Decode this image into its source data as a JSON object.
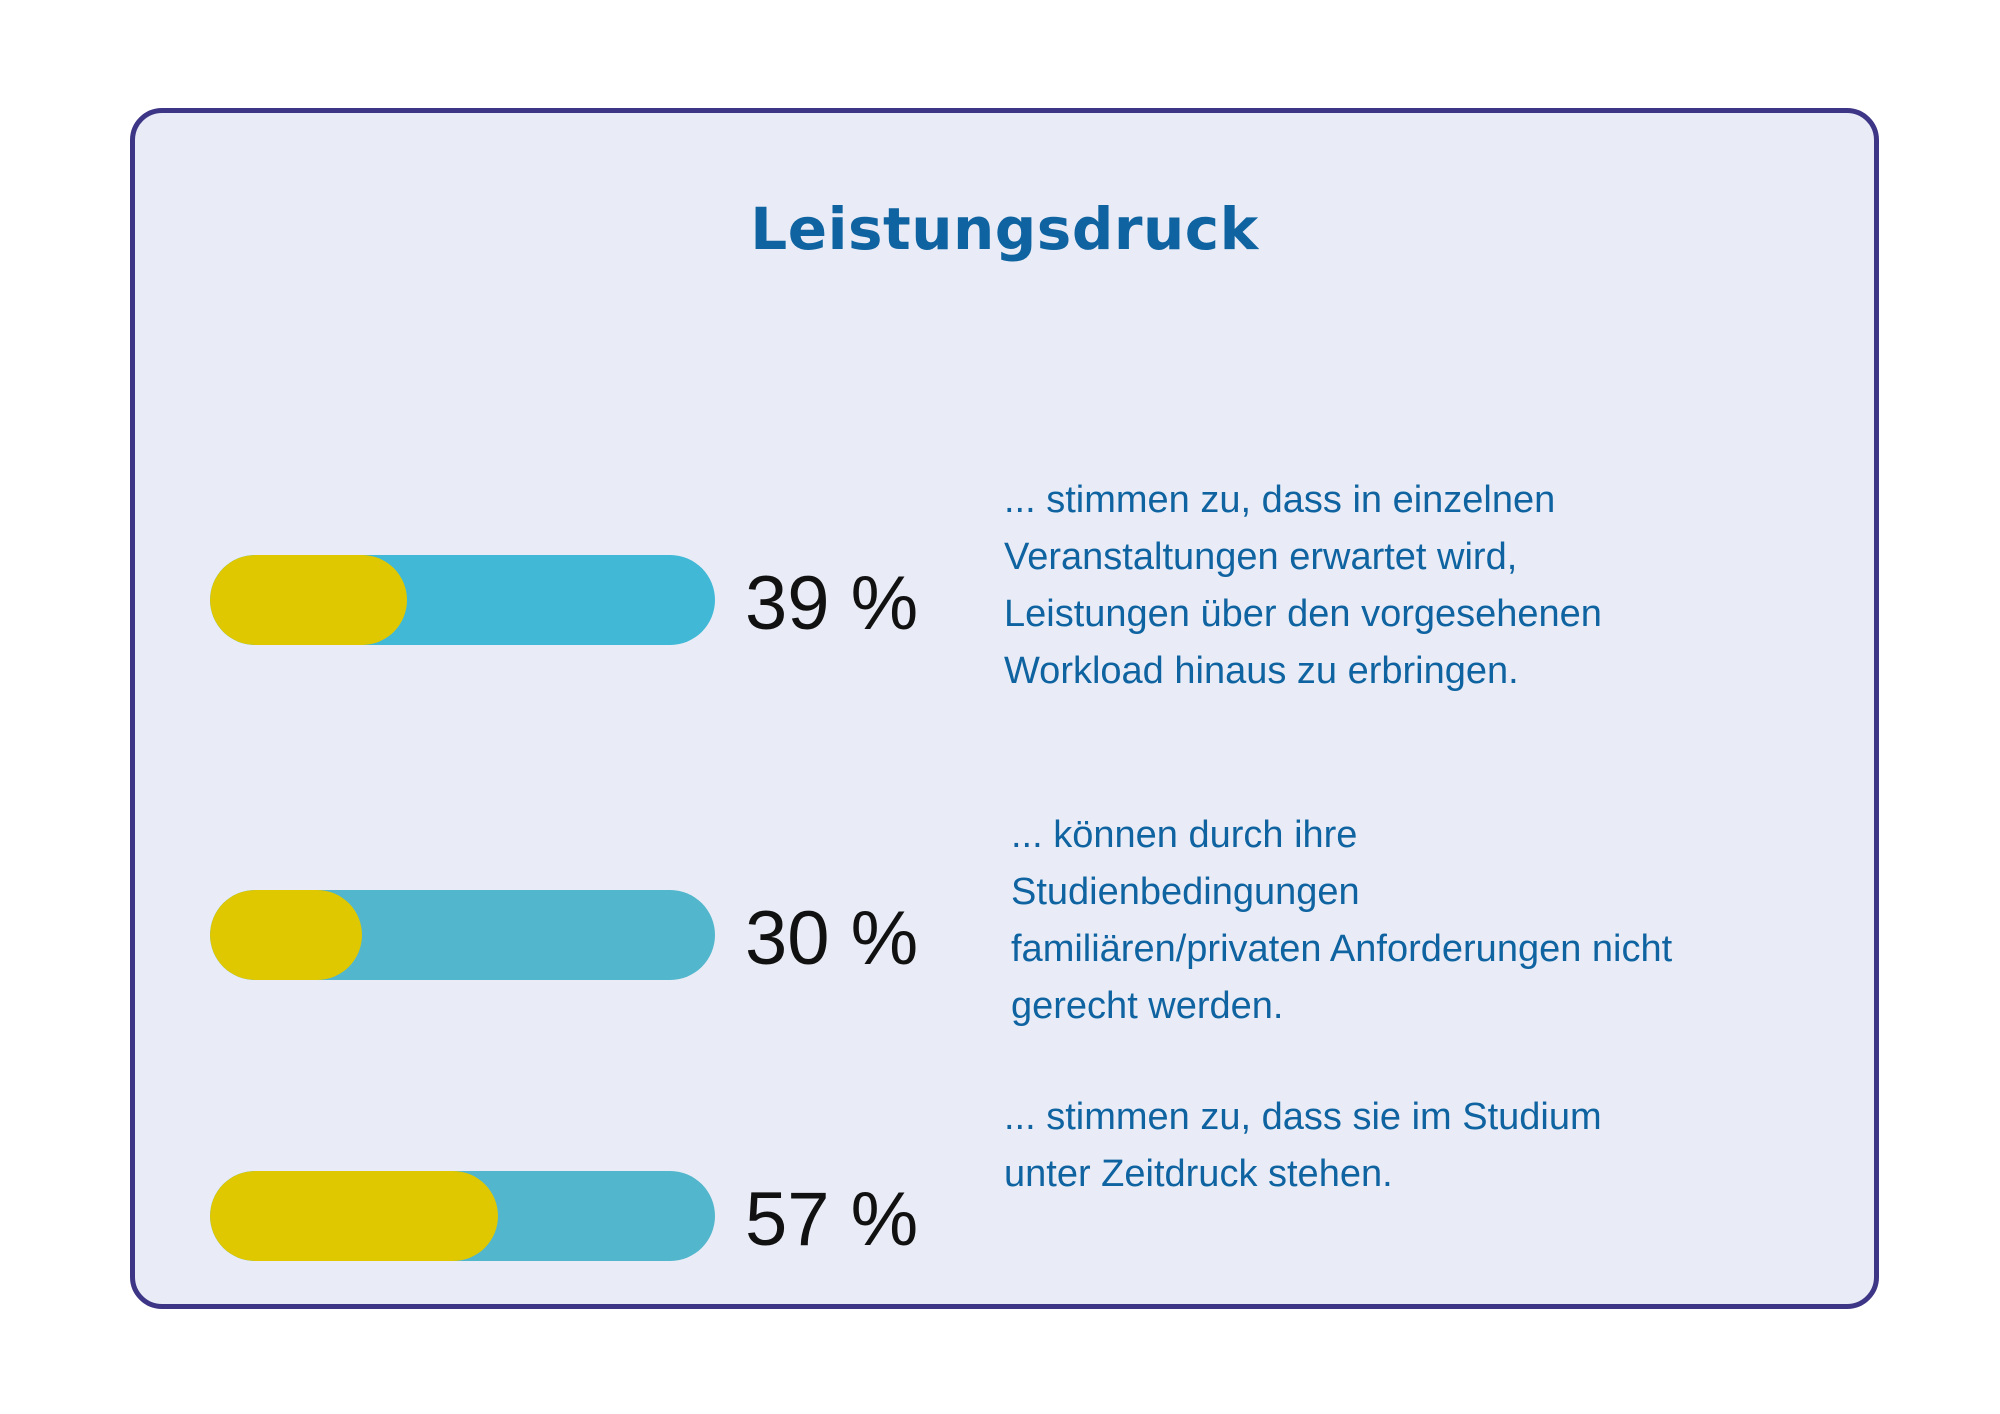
{
  "colors": {
    "border": "#3d3585",
    "card_background": "#e9ecf6",
    "title": "#0e63a0",
    "fill": "#dfc800",
    "track_first": "#41b8d6",
    "track_other": "#52b6cc",
    "text": "#0e63a0",
    "percent": "#111111"
  },
  "chart_data": {
    "type": "bar",
    "title": "Leistungsdruck",
    "unit": "%",
    "categories": [
      "... stimmen zu, dass in einzelnen Veranstaltungen erwartet wird, Leistungen über den vorgesehenen Workload hinaus zu erbringen.",
      "... können durch ihre Studienbedingungen familiären/privaten Anforderungen nicht gerecht werden.",
      "... stimmen zu, dass sie im Studium unter Zeitdruck stehen."
    ],
    "values": [
      39,
      30,
      57
    ],
    "xlim": [
      0,
      100
    ],
    "items": [
      {
        "value": 39,
        "label": "39 %",
        "lines": [
          "... stimmen zu, dass in einzelnen",
          "Veranstaltungen erwartet wird,",
          "Leistungen über den vorgesehenen",
          "Workload hinaus zu erbringen."
        ]
      },
      {
        "value": 30,
        "label": "30 %",
        "lines": [
          "... können durch ihre",
          "Studienbedingungen",
          "familiären/privaten Anforderungen nicht",
          "gerecht werden."
        ]
      },
      {
        "value": 57,
        "label": "57 %",
        "lines": [
          "... stimmen zu, dass sie im Studium",
          "unter Zeitdruck stehen."
        ]
      }
    ]
  }
}
